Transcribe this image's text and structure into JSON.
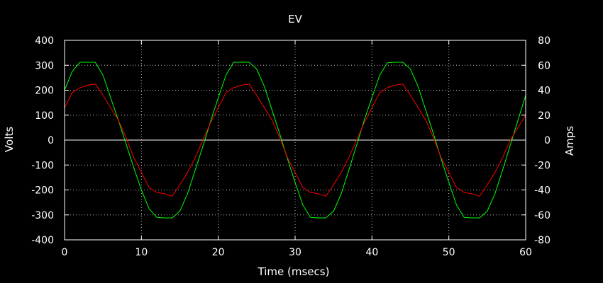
{
  "chart_data": {
    "type": "line",
    "title": "EV",
    "xlabel": "Time (msecs)",
    "ylabel": "Volts",
    "y2label": "Amps",
    "xlim": [
      0,
      60
    ],
    "ylim": [
      -400,
      400
    ],
    "y2lim": [
      -80,
      80
    ],
    "grid": true,
    "zero_line": true,
    "x_ticks": [
      "0",
      "10",
      "20",
      "30",
      "40",
      "50",
      "60"
    ],
    "y_ticks": [
      "400",
      "300",
      "200",
      "100",
      "0",
      "-100",
      "-200",
      "-300",
      "-400"
    ],
    "y2_ticks": [
      "80",
      "60",
      "40",
      "20",
      "0",
      "-20",
      "-40",
      "-60",
      "-80"
    ],
    "colors": {
      "background": "#000000",
      "frame": "#ffffff",
      "grid": "#c0c0c0",
      "volts": "#00ff00",
      "amps": "#ff0000"
    },
    "series": [
      {
        "name": "Volts",
        "axis": "left",
        "color": "#00ff00",
        "x": [
          0,
          1,
          2,
          3,
          4,
          5,
          6,
          7,
          8,
          9,
          10,
          11,
          12,
          13,
          14,
          15,
          16,
          17,
          18,
          19,
          20,
          21,
          22,
          23,
          24,
          25,
          26,
          27,
          28,
          29,
          30,
          31,
          32,
          33,
          34,
          35,
          36,
          37,
          38,
          39,
          40,
          41,
          42,
          43,
          44,
          45,
          46,
          47,
          48,
          49,
          50,
          51,
          52,
          53,
          54,
          55,
          56,
          57,
          58,
          59,
          60
        ],
        "y": [
          200,
          275,
          312,
          312,
          312,
          260,
          170,
          80,
          -15,
          -110,
          -200,
          -275,
          -310,
          -312,
          -312,
          -285,
          -215,
          -120,
          -25,
          75,
          170,
          260,
          312,
          312,
          312,
          285,
          215,
          120,
          25,
          -75,
          -170,
          -260,
          -310,
          -312,
          -312,
          -285,
          -215,
          -120,
          -20,
          80,
          170,
          260,
          310,
          312,
          312,
          285,
          215,
          120,
          25,
          -75,
          -170,
          -260,
          -310,
          -312,
          -312,
          -285,
          -215,
          -120,
          -20,
          80,
          180
        ]
      },
      {
        "name": "Amps",
        "axis": "right",
        "color": "#ff0000",
        "x": [
          0,
          1,
          2,
          3,
          4,
          5,
          6,
          7,
          8,
          9,
          10,
          11,
          12,
          13,
          14,
          15,
          16,
          17,
          18,
          19,
          20,
          21,
          22,
          23,
          24,
          25,
          26,
          27,
          28,
          29,
          30,
          31,
          32,
          33,
          34,
          35,
          36,
          37,
          38,
          39,
          40,
          41,
          42,
          43,
          44,
          45,
          46,
          47,
          48,
          49,
          50,
          51,
          52,
          53,
          54,
          55,
          56,
          57,
          58,
          59,
          60
        ],
        "y": [
          26,
          38,
          42,
          44,
          45,
          36,
          26,
          16,
          2,
          -14,
          -26,
          -38,
          -42,
          -43,
          -45,
          -36,
          -26,
          -14,
          0,
          14,
          26,
          38,
          42,
          44,
          45,
          36,
          26,
          16,
          2,
          -14,
          -26,
          -38,
          -42,
          -43,
          -45,
          -36,
          -26,
          -14,
          0,
          14,
          26,
          38,
          42,
          44,
          45,
          36,
          26,
          16,
          2,
          -14,
          -26,
          -38,
          -42,
          -43,
          -45,
          -36,
          -26,
          -14,
          0,
          10,
          20
        ]
      }
    ]
  }
}
